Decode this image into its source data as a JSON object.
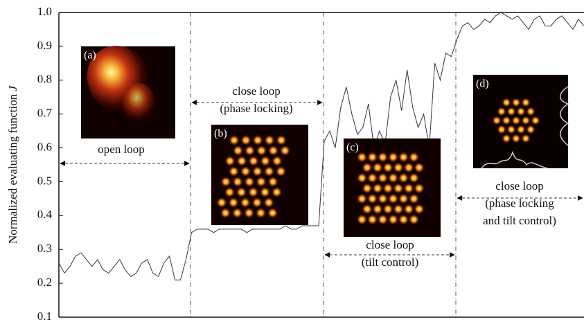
{
  "chart_data": {
    "type": "line",
    "y_label": "Normalized evaluating function",
    "y_label_var": "J",
    "ylim": [
      0.1,
      1.0
    ],
    "yticks": [
      0.1,
      0.2,
      0.3,
      0.4,
      0.5,
      0.6,
      0.7,
      0.8,
      0.9,
      {
        "value": 1.0,
        "label": "1.0"
      }
    ],
    "series": [
      {
        "color": "#333333",
        "values": [
          0.26,
          0.23,
          0.25,
          0.28,
          0.29,
          0.27,
          0.25,
          0.27,
          0.24,
          0.23,
          0.25,
          0.27,
          0.24,
          0.22,
          0.23,
          0.26,
          0.27,
          0.23,
          0.22,
          0.26,
          0.28,
          0.21,
          0.21,
          0.27,
          0.35,
          0.36,
          0.36,
          0.36,
          0.35,
          0.36,
          0.36,
          0.36,
          0.36,
          0.36,
          0.35,
          0.36,
          0.36,
          0.36,
          0.36,
          0.36,
          0.36,
          0.37,
          0.36,
          0.36,
          0.37,
          0.37,
          0.37,
          0.37,
          0.62,
          0.65,
          0.6,
          0.72,
          0.78,
          0.7,
          0.64,
          0.66,
          0.73,
          0.6,
          0.65,
          0.61,
          0.75,
          0.8,
          0.71,
          0.83,
          0.72,
          0.66,
          0.7,
          0.6,
          0.85,
          0.8,
          0.88,
          0.87,
          0.92,
          0.96,
          0.97,
          0.95,
          0.96,
          0.98,
          0.97,
          0.99,
          1.0,
          0.99,
          0.98,
          0.99,
          0.97,
          0.95,
          0.98,
          0.99,
          0.96,
          0.96,
          0.98,
          0.99,
          0.97,
          0.95,
          0.98,
          0.96
        ]
      }
    ],
    "annotations": [
      {
        "label": "(a)",
        "text": [
          "open loop"
        ]
      },
      {
        "label": "(b)",
        "text": [
          "close loop",
          "(phase locking)"
        ]
      },
      {
        "label": "(c)",
        "text": [
          "close loop",
          "(tilt control)"
        ]
      },
      {
        "label": "(d)",
        "text": [
          "close loop",
          "(phase locking",
          "and tilt control)"
        ]
      }
    ]
  }
}
